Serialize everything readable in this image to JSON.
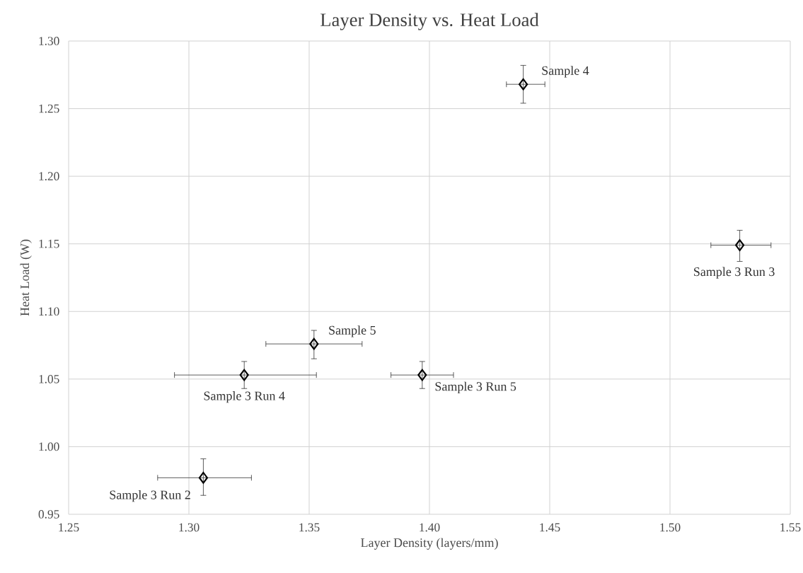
{
  "chart_data": {
    "type": "scatter",
    "title": "Layer Density vs. Heat Load",
    "xlabel": "Layer Density (layers/mm)",
    "ylabel": "Heat Load (W)",
    "series": [
      {
        "color": "#000000",
        "x": [
          1.306,
          1.323,
          1.352,
          1.397,
          1.439,
          1.529
        ],
        "values": [
          0.977,
          1.053,
          1.076,
          1.053,
          1.268,
          1.149
        ],
        "xerrors": [
          [
            1.287,
            1.326
          ],
          [
            1.294,
            1.353
          ],
          [
            1.332,
            1.372
          ],
          [
            1.384,
            1.41
          ],
          [
            1.432,
            1.448
          ],
          [
            1.517,
            1.542
          ]
        ],
        "errors": [
          [
            0.964,
            0.991
          ],
          [
            1.043,
            1.063
          ],
          [
            1.065,
            1.086
          ],
          [
            1.043,
            1.063
          ],
          [
            1.254,
            1.282
          ],
          [
            1.137,
            1.16
          ]
        ]
      }
    ],
    "xlim": [
      1.25,
      1.55
    ],
    "xticks": [
      {
        "value": 1.25,
        "label": "1.25"
      },
      {
        "value": 1.3,
        "label": "1.30"
      },
      {
        "value": 1.35,
        "label": "1.35"
      },
      {
        "value": 1.4,
        "label": "1.40"
      },
      {
        "value": 1.45,
        "label": "1.45"
      },
      {
        "value": 1.5,
        "label": "1.50"
      },
      {
        "value": 1.55,
        "label": "1.55"
      }
    ],
    "ylim": [
      0.95,
      1.3
    ],
    "yticks": [
      {
        "value": 0.95,
        "label": "0.95"
      },
      {
        "value": 1.0,
        "label": "1.00"
      },
      {
        "value": 1.05,
        "label": "1.05"
      },
      {
        "value": 1.1,
        "label": "1.10"
      },
      {
        "value": 1.15,
        "label": "1.15"
      },
      {
        "value": 1.2,
        "label": "1.20"
      },
      {
        "value": 1.25,
        "label": "1.25"
      },
      {
        "value": 1.3,
        "label": "1.30"
      }
    ],
    "annotations": [
      {
        "text": "Sample 3 Run 2",
        "x": 1.306,
        "y": 0.977
      },
      {
        "text": "Sample 3 Run 4",
        "x": 1.323,
        "y": 1.053
      },
      {
        "text": "Sample 5",
        "x": 1.352,
        "y": 1.076
      },
      {
        "text": "Sample 3 Run 5",
        "x": 1.397,
        "y": 1.053
      },
      {
        "text": "Sample 4",
        "x": 1.439,
        "y": 1.268
      },
      {
        "text": "Sample 3 Run 3",
        "x": 1.529,
        "y": 1.149
      }
    ],
    "grid": true,
    "marker": "diamond"
  }
}
